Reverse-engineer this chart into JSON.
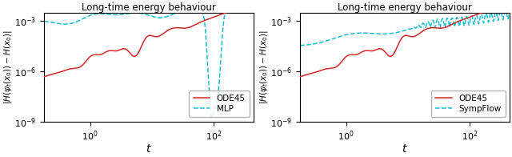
{
  "title": "Long-time energy behaviour",
  "xlabel": "$t$",
  "ylabel": "$|H(\\psi_t(x_0)) - H(x_0)|$",
  "ode45_color": "#d62728",
  "cyan_color": "#17becf",
  "legend1": [
    "ODE45",
    "MLP"
  ],
  "legend2": [
    "ODE45",
    "SympFlow"
  ],
  "figsize": [
    6.4,
    1.96
  ],
  "dpi": 100,
  "xlim": [
    0.18,
    450
  ],
  "ylim": [
    1e-09,
    0.003
  ],
  "yticks": [
    1e-09,
    1e-06,
    0.001
  ],
  "xticks": [
    1,
    100
  ]
}
